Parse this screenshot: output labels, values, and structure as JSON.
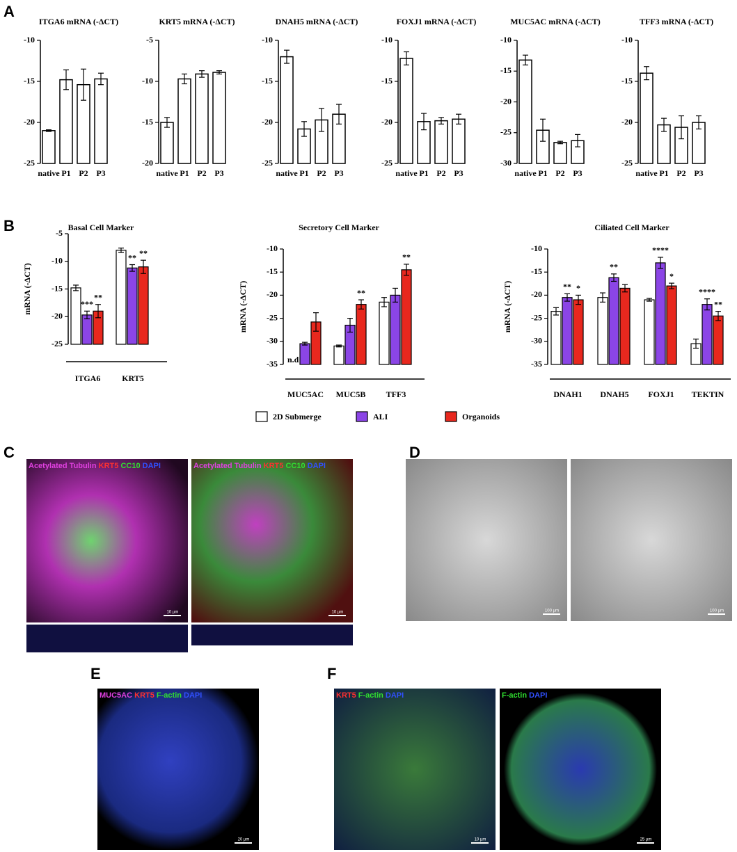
{
  "panels": [
    "A",
    "B",
    "C",
    "D",
    "E",
    "F"
  ],
  "chart_data": [
    {
      "type": "bar",
      "title": "ITGA6 mRNA (-ΔCT)",
      "categories": [
        "native",
        "P1",
        "P2",
        "P3"
      ],
      "values": [
        -21,
        -14.8,
        -15.4,
        -14.7
      ],
      "errors": [
        0.1,
        1.2,
        1.9,
        0.7
      ],
      "color": "#ffffff",
      "ylim": [
        -25,
        -10
      ],
      "yticks": [
        -10,
        -15,
        -20,
        -25
      ]
    },
    {
      "type": "bar",
      "title": "KRT5 mRNA (-ΔCT)",
      "categories": [
        "native",
        "P1",
        "P2",
        "P3"
      ],
      "values": [
        -15,
        -9.7,
        -9.1,
        -8.9
      ],
      "errors": [
        0.6,
        0.6,
        0.4,
        0.2
      ],
      "color": "#ffffff",
      "ylim": [
        -20,
        -5
      ],
      "yticks": [
        -5,
        -10,
        -15,
        -20
      ]
    },
    {
      "type": "bar",
      "title": "DNAH5 mRNA (-ΔCT)",
      "categories": [
        "native",
        "P1",
        "P2",
        "P3"
      ],
      "values": [
        -12,
        -20.8,
        -19.7,
        -19
      ],
      "errors": [
        0.8,
        0.9,
        1.4,
        1.2
      ],
      "color": "#ffffff",
      "ylim": [
        -25,
        -10
      ],
      "yticks": [
        -10,
        -15,
        -20,
        -25
      ]
    },
    {
      "type": "bar",
      "title": "FOXJ1 mRNA (-ΔCT)",
      "categories": [
        "native",
        "P1",
        "P2",
        "P3"
      ],
      "values": [
        -12.2,
        -19.9,
        -19.8,
        -19.6
      ],
      "errors": [
        0.8,
        1,
        0.4,
        0.6
      ],
      "color": "#ffffff",
      "ylim": [
        -25,
        -10
      ],
      "yticks": [
        -10,
        -15,
        -20,
        -25
      ]
    },
    {
      "type": "bar",
      "title": "MUC5AC mRNA (-ΔCT)",
      "categories": [
        "native",
        "P1",
        "P2",
        "P3"
      ],
      "values": [
        -13.2,
        -24.6,
        -26.6,
        -26.3
      ],
      "errors": [
        0.8,
        1.8,
        0.2,
        1
      ],
      "color": "#ffffff",
      "ylim": [
        -30,
        -10
      ],
      "yticks": [
        -10,
        -15,
        -20,
        -25,
        -30
      ]
    },
    {
      "type": "bar",
      "title": "TFF3 mRNA (-ΔCT)",
      "categories": [
        "native",
        "P1",
        "P2",
        "P3"
      ],
      "values": [
        -14,
        -20.3,
        -20.6,
        -20
      ],
      "errors": [
        0.8,
        0.8,
        1.4,
        0.8
      ],
      "color": "#ffffff",
      "ylim": [
        -25,
        -10
      ],
      "yticks": [
        -10,
        -15,
        -20,
        -25
      ]
    },
    {
      "type": "grouped-bar",
      "title": "Basal Cell Marker",
      "y_label": "mRNA (-ΔCT)",
      "categories": [
        "ITGA6",
        "KRT5"
      ],
      "ylim": [
        -25,
        -5
      ],
      "yticks": [
        -5,
        -10,
        -15,
        -20,
        -25
      ],
      "series": [
        {
          "name": "2D Submerge",
          "color": "#ffffff",
          "values": [
            -14.8,
            -8
          ],
          "errors": [
            0.5,
            0.4
          ]
        },
        {
          "name": "ALI",
          "color": "#8b45e6",
          "values": [
            -19.7,
            -11.2
          ],
          "errors": [
            0.7,
            0.6
          ],
          "significance": [
            "***",
            "**"
          ]
        },
        {
          "name": "Organoids",
          "color": "#e8281e",
          "values": [
            -19,
            -11
          ],
          "errors": [
            1.2,
            1.2
          ],
          "significance": [
            "**",
            "**"
          ]
        }
      ]
    },
    {
      "type": "grouped-bar",
      "title": "Secretory Cell Marker",
      "y_label": "mRNA (-ΔCT)",
      "annotation": "n.d",
      "categories": [
        "MUC5AC",
        "MUC5B",
        "TFF3"
      ],
      "ylim": [
        -35,
        -10
      ],
      "yticks": [
        -10,
        -15,
        -20,
        -25,
        -30,
        -35
      ],
      "series": [
        {
          "name": "2D Submerge",
          "color": "#ffffff",
          "values": [
            null,
            -31,
            -21.5
          ],
          "errors": [
            null,
            0.2,
            1
          ]
        },
        {
          "name": "ALI",
          "color": "#8b45e6",
          "values": [
            -30.5,
            -26.5,
            -20
          ],
          "errors": [
            0.3,
            1.5,
            1.5
          ]
        },
        {
          "name": "Organoids",
          "color": "#e8281e",
          "values": [
            -25.8,
            -22,
            -14.5
          ],
          "errors": [
            2,
            1,
            1.2
          ],
          "significance": [
            null,
            "**",
            "**"
          ]
        }
      ]
    },
    {
      "type": "grouped-bar",
      "title": "Ciliated Cell Marker",
      "y_label": "mRNA (-ΔCT)",
      "categories": [
        "DNAH1",
        "DNAH5",
        "FOXJ1",
        "TEKTIN"
      ],
      "ylim": [
        -35,
        -10
      ],
      "yticks": [
        -10,
        -15,
        -20,
        -25,
        -30,
        -35
      ],
      "series": [
        {
          "name": "2D Submerge",
          "color": "#ffffff",
          "values": [
            -23.5,
            -20.5,
            -21,
            -30.5
          ],
          "errors": [
            0.8,
            1,
            0.3,
            1
          ]
        },
        {
          "name": "ALI",
          "color": "#8b45e6",
          "values": [
            -20.5,
            -16.2,
            -13,
            -22
          ],
          "errors": [
            0.8,
            0.8,
            1.2,
            1.2
          ],
          "significance": [
            "**",
            "**",
            "****",
            "****"
          ]
        },
        {
          "name": "Organoids",
          "color": "#e8281e",
          "values": [
            -21,
            -18.5,
            -18,
            -24.5
          ],
          "errors": [
            1,
            0.8,
            0.6,
            1
          ],
          "significance": [
            "*",
            null,
            "*",
            "**"
          ]
        }
      ]
    }
  ],
  "images": [
    {
      "label": [
        {
          "text": "Acetylated Tubulin",
          "color": "#e040e0"
        },
        {
          "text": "KRT5",
          "color": "#ff3030"
        },
        {
          "text": "CC10",
          "color": "#30e030"
        },
        {
          "text": "DAPI",
          "color": "#3050ff"
        }
      ],
      "scale": "10 µm"
    },
    {
      "label": [
        {
          "text": "Acetylated Tubulin",
          "color": "#e040e0"
        },
        {
          "text": "KRT5",
          "color": "#ff3030"
        },
        {
          "text": "CC10",
          "color": "#30e030"
        },
        {
          "text": "DAPI",
          "color": "#3050ff"
        }
      ],
      "scale": "10 µm"
    },
    {
      "scale": "100 µm"
    },
    {
      "scale": "100 µm"
    },
    {
      "label": [
        {
          "text": "MUC5AC",
          "color": "#e040e0"
        },
        {
          "text": "KRT5",
          "color": "#ff3030"
        },
        {
          "text": "F-actin",
          "color": "#30e030"
        },
        {
          "text": "DAPI",
          "color": "#3050ff"
        }
      ],
      "scale": "20 µm"
    },
    {
      "label": [
        {
          "text": "KRT5",
          "color": "#ff3030"
        },
        {
          "text": "F-actin",
          "color": "#30e030"
        },
        {
          "text": "DAPI",
          "color": "#3050ff"
        }
      ],
      "scale": "10 µm"
    },
    {
      "label": [
        {
          "text": "F-actin",
          "color": "#30e030"
        },
        {
          "text": "DAPI",
          "color": "#3050ff"
        }
      ],
      "scale": "25 µm"
    }
  ]
}
